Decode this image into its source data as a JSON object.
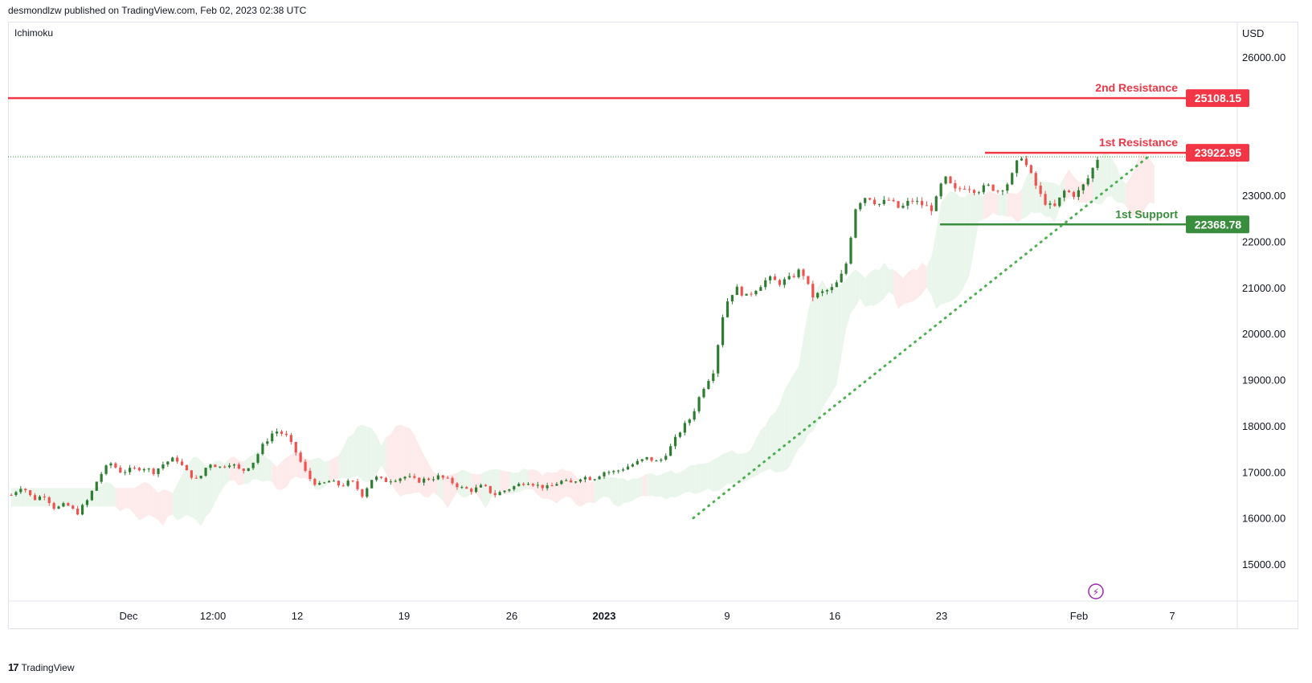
{
  "header": {
    "published": "desmondlzw published on TradingView.com, Feb 02, 2023 02:38 UTC"
  },
  "indicator": {
    "label": "Ichimoku"
  },
  "currency": "USD",
  "footer": {
    "brand": "TradingView"
  },
  "colors": {
    "up": "#26a69a",
    "up_body": "#2e7d32",
    "down": "#ef5350",
    "resistance": "#f23645",
    "support": "#388e3c",
    "cloud_green": "#e8f5e9",
    "cloud_red": "#fde8e8",
    "trend": "#4caf50"
  },
  "icons": {
    "flash": "lightning-icon",
    "logo": "tradingview-logo-icon"
  },
  "chart_data": {
    "type": "candlestick",
    "title": "",
    "ylim": [
      14200,
      27000
    ],
    "y_ticks": [
      "26000.00",
      "23000.00",
      "22000.00",
      "21000.00",
      "20000.00",
      "19000.00",
      "18000.00",
      "17000.00",
      "16000.00",
      "15000.00"
    ],
    "x_ticks": [
      "Dec",
      "12:00",
      "12",
      "19",
      "26",
      "2023",
      "9",
      "16",
      "23",
      "Feb",
      "7"
    ],
    "levels": [
      {
        "name": "2nd Resistance",
        "value": 25108.15,
        "label": "25108.15"
      },
      {
        "name": "1st Resistance",
        "value": 23922.95,
        "label": "23922.95"
      },
      {
        "name": "1st Support",
        "value": 22368.78,
        "label": "22368.78"
      }
    ],
    "trendline": {
      "from": 16000,
      "to": 23820,
      "style": "dotted"
    },
    "close_path": [
      16500,
      16700,
      16400,
      16500,
      16200,
      16300,
      16100,
      16400,
      16900,
      17200,
      17000,
      17050,
      17100,
      17000,
      17200,
      17300,
      17000,
      16800,
      17200,
      17100,
      17200,
      17000,
      17200,
      17600,
      17900,
      17800,
      17400,
      16900,
      16700,
      16800,
      16700,
      16800,
      16500,
      16900,
      16800,
      16850,
      16900,
      16800,
      16850,
      16900,
      16800,
      16650,
      16600,
      16700,
      16500,
      16600,
      16700,
      16800,
      16700,
      16650,
      16800,
      16750,
      16900,
      16850,
      17000,
      17000,
      17100,
      17200,
      17300,
      17200,
      17500,
      17900,
      18200,
      18800,
      19200,
      20600,
      21000,
      20800,
      21000,
      21200,
      21100,
      21200,
      21400,
      20800,
      20900,
      21000,
      21400,
      22800,
      23000,
      22800,
      22900,
      22700,
      22900,
      22800,
      22700,
      23400,
      23100,
      23200,
      23100,
      23200,
      23100,
      23300,
      23900,
      23400,
      22900,
      22700,
      23100,
      23000,
      23300,
      23800
    ]
  }
}
